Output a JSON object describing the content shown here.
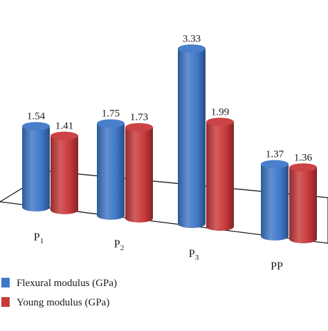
{
  "chart_data": {
    "type": "bar",
    "style": "3d-cylinder",
    "categories": [
      {
        "main": "P",
        "sub": "1"
      },
      {
        "main": "P",
        "sub": "2"
      },
      {
        "main": "P",
        "sub": "3"
      },
      {
        "main": "PP",
        "sub": ""
      }
    ],
    "series": [
      {
        "name": "Flexural modulus (GPa)",
        "values": [
          1.54,
          1.75,
          3.33,
          1.37
        ],
        "labels": [
          "1.54",
          "1.75",
          "3.33",
          "1.37"
        ],
        "color": "#3f78c8"
      },
      {
        "name": "Young modulus (GPa)",
        "values": [
          1.41,
          1.73,
          1.99,
          1.36
        ],
        "labels": [
          "1.41",
          "1.73",
          "1.99",
          "1.36"
        ],
        "color": "#c8393b"
      }
    ],
    "legend_position": "bottom-left",
    "grid": false,
    "xlabel": "",
    "ylabel": ""
  }
}
